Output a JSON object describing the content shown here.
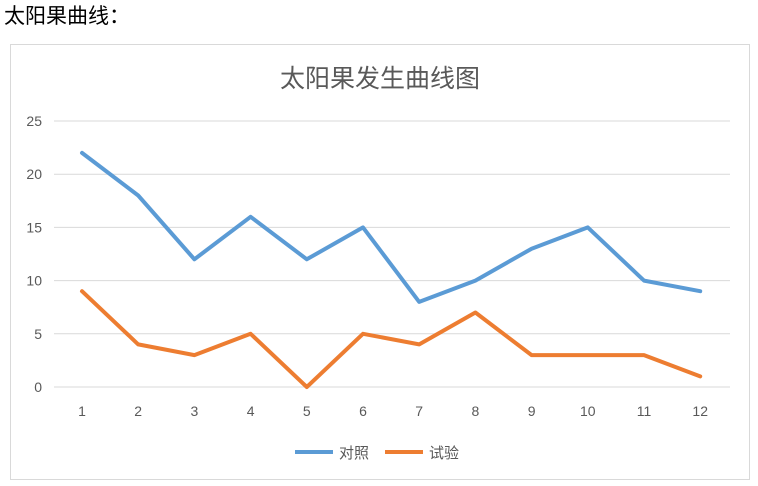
{
  "document": {
    "heading": "太阳果曲线："
  },
  "colors": {
    "series_1": "#5b9bd5",
    "series_2": "#ed7d31",
    "grid": "#d9d9d9",
    "text": "#595959"
  },
  "chart_data": {
    "type": "line",
    "title": "太阳果发生曲线图",
    "xlabel": "",
    "ylabel": "",
    "categories": [
      "1",
      "2",
      "3",
      "4",
      "5",
      "6",
      "7",
      "8",
      "9",
      "10",
      "11",
      "12"
    ],
    "y_ticks": [
      "0",
      "5",
      "10",
      "15",
      "20",
      "25"
    ],
    "ylim": [
      0,
      25
    ],
    "grid": true,
    "legend_position": "bottom",
    "series": [
      {
        "name": "对照",
        "values": [
          22,
          18,
          12,
          16,
          12,
          15,
          8,
          10,
          13,
          15,
          10,
          9
        ]
      },
      {
        "name": "试验",
        "values": [
          9,
          4,
          3,
          5,
          0,
          5,
          4,
          7,
          3,
          3,
          3,
          1
        ]
      }
    ]
  }
}
